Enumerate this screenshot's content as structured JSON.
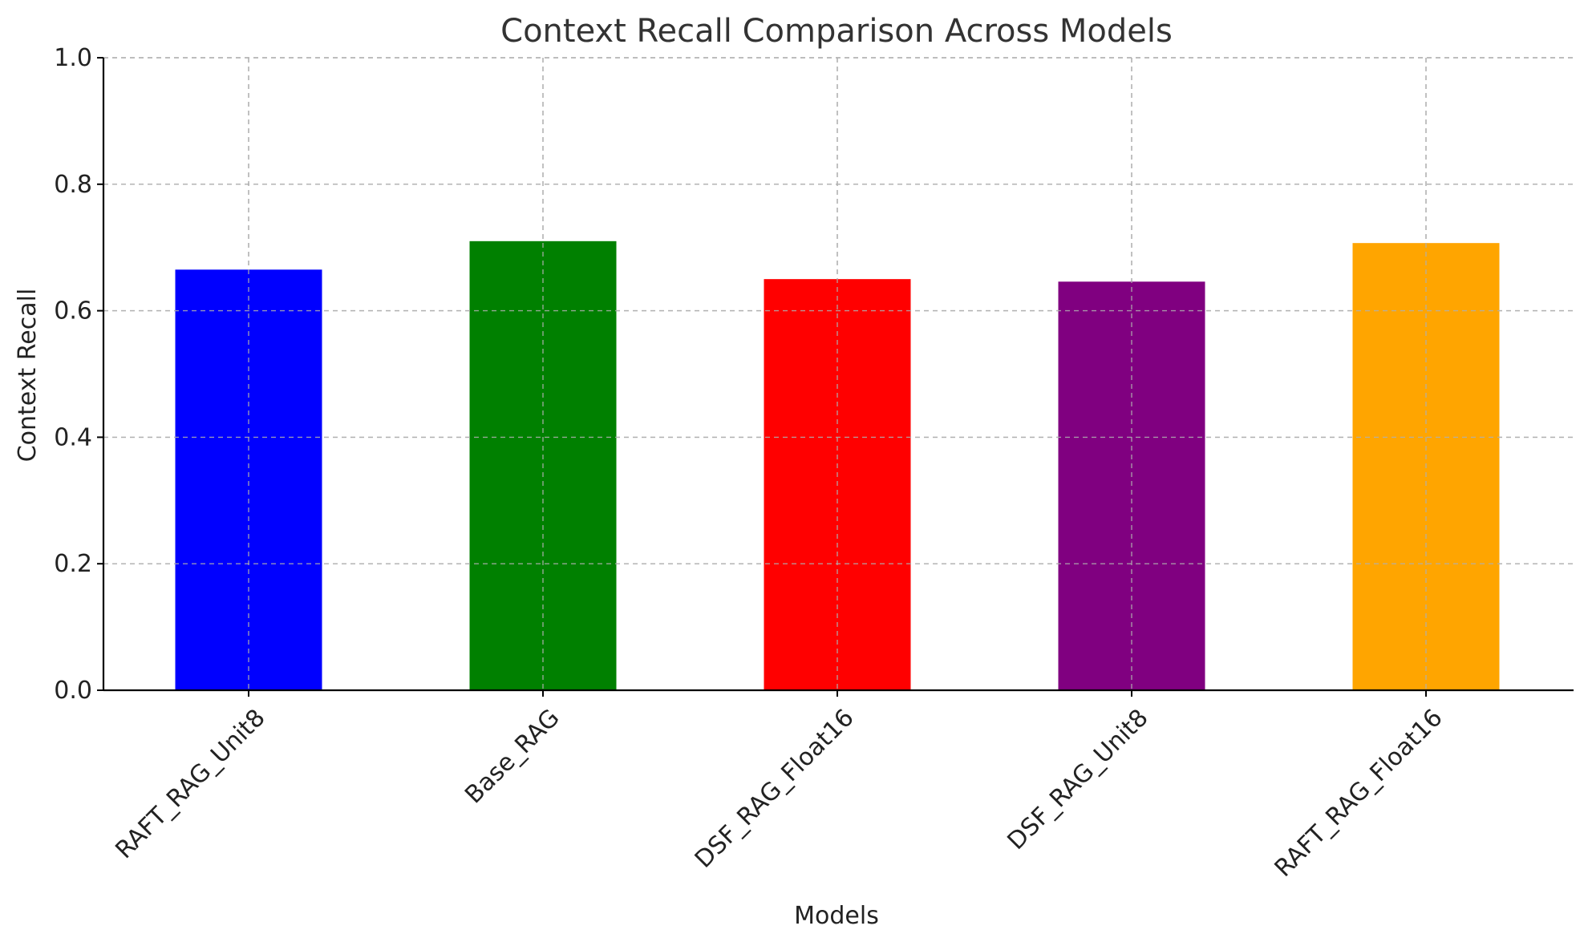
{
  "chart_data": {
    "type": "bar",
    "title": "Context Recall Comparison Across Models",
    "xlabel": "Models",
    "ylabel": "Context Recall",
    "categories": [
      "RAFT_RAG_Unit8",
      "Base_RAG",
      "DSF_RAG_Float16",
      "DSF_RAG_Unit8",
      "RAFT_RAG_Float16"
    ],
    "values": [
      0.665,
      0.71,
      0.65,
      0.646,
      0.707
    ],
    "colors": [
      "#0000ff",
      "#008000",
      "#ff0000",
      "#800080",
      "#ffa500"
    ],
    "ylim": [
      0,
      1.0
    ],
    "yticks": [
      "0.0",
      "0.2",
      "0.4",
      "0.6",
      "0.8",
      "1.0"
    ],
    "grid": true,
    "legend": "none"
  }
}
